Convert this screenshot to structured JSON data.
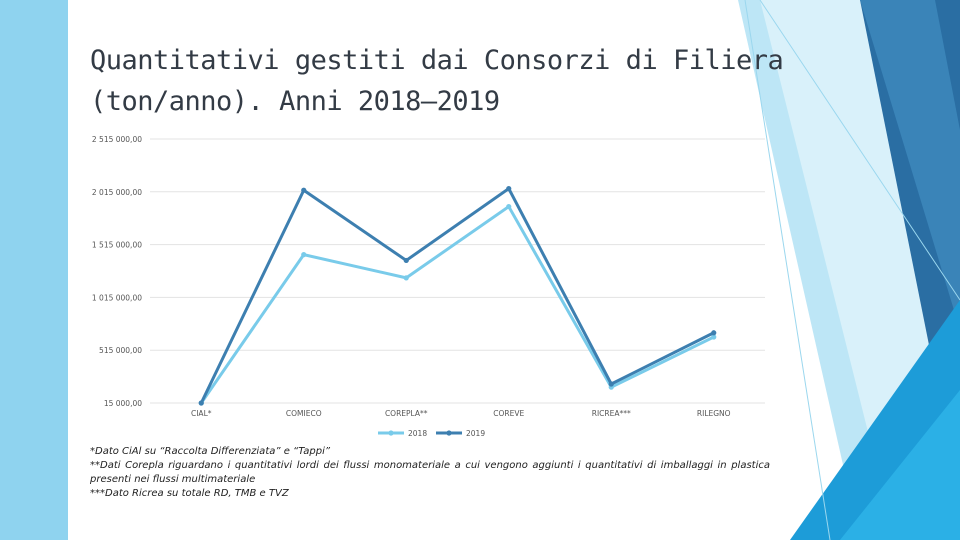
{
  "title_lines": [
    "Quantitativi gestiti dai Consorzi di Filiera",
    "(ton/anno). Anni 2018–2019"
  ],
  "colors": {
    "band": "#8fd3ef",
    "series_2018": "#79cbea",
    "series_2019": "#3d7fb0",
    "grid": "#e3e3e3"
  },
  "chart_data": {
    "type": "line",
    "categories": [
      "CIAL*",
      "COMIECO",
      "COREPLA**",
      "COREVE",
      "RICREA***",
      "RILEGNO"
    ],
    "y_tick_labels": [
      "2 515 000,00",
      "2 015 000,00",
      "1 515 000,00",
      "1 015 000,00",
      "515 000,00",
      "15 000,00"
    ],
    "ylim": [
      15000,
      2515000
    ],
    "y_ticks": [
      2515000,
      2015000,
      1515000,
      1015000,
      515000,
      15000
    ],
    "series": [
      {
        "name": "2018",
        "values": [
          15000,
          1420000,
          1200000,
          1875000,
          165000,
          640000
        ]
      },
      {
        "name": "2019",
        "values": [
          15000,
          2030000,
          1365000,
          2045000,
          195000,
          680000
        ]
      }
    ],
    "legend_position": "bottom",
    "grid": true
  },
  "notes": [
    "*Dato CiAl su “Raccolta Differenziata” e “Tappi”",
    "**Dati Corepla riguardano i quantitativi lordi dei flussi monomateriale a cui vengono aggiunti i quantitativi di imballaggi in plastica presenti nei flussi multimateriale",
    "***Dato Ricrea su totale RD, TMB e TVZ"
  ]
}
